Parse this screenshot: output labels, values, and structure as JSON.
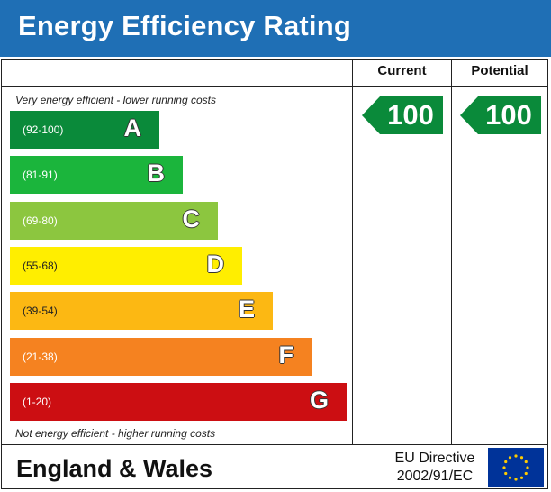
{
  "header": {
    "title": "Energy Efficiency Rating"
  },
  "columns": {
    "current": "Current",
    "potential": "Potential"
  },
  "notes": {
    "top": "Very energy efficient - lower running costs",
    "bottom": "Not energy efficient - higher running costs"
  },
  "chart_data": {
    "type": "bar",
    "title": "Energy Efficiency Rating",
    "bands": [
      {
        "letter": "A",
        "range": "(92-100)",
        "color": "#0a8a3a"
      },
      {
        "letter": "B",
        "range": "(81-91)",
        "color": "#1bb53c"
      },
      {
        "letter": "C",
        "range": "(69-80)",
        "color": "#8cc63f"
      },
      {
        "letter": "D",
        "range": "(55-68)",
        "color": "#ffee00"
      },
      {
        "letter": "E",
        "range": "(39-54)",
        "color": "#fcb813"
      },
      {
        "letter": "F",
        "range": "(21-38)",
        "color": "#f58220"
      },
      {
        "letter": "G",
        "range": "(1-20)",
        "color": "#cc0e12"
      }
    ],
    "current": {
      "value": 100,
      "band": "A",
      "color": "#0a8a3a"
    },
    "potential": {
      "value": 100,
      "band": "A",
      "color": "#0a8a3a"
    }
  },
  "footer": {
    "region": "England & Wales",
    "directive_line1": "EU Directive",
    "directive_line2": "2002/91/EC"
  },
  "colors": {
    "header": "#1f6fb5",
    "eu_flag": "#003399",
    "eu_stars": "#ffcc00"
  }
}
